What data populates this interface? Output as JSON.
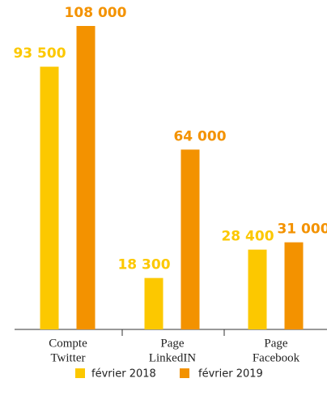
{
  "chart_data": {
    "type": "bar",
    "categories": [
      [
        "Compte",
        "Twitter"
      ],
      [
        "Page",
        "LinkedIN"
      ],
      [
        "Page",
        "Facebook"
      ]
    ],
    "series": [
      {
        "name": "février 2018",
        "color": "#fcc800",
        "values": [
          93500,
          18300,
          28400
        ],
        "value_labels": [
          "93 500",
          "18 300",
          "28 400"
        ]
      },
      {
        "name": "février 2019",
        "color": "#f39200",
        "values": [
          108000,
          64000,
          31000
        ],
        "value_labels": [
          "108 000",
          "64 000",
          "31 000"
        ]
      }
    ]
  }
}
